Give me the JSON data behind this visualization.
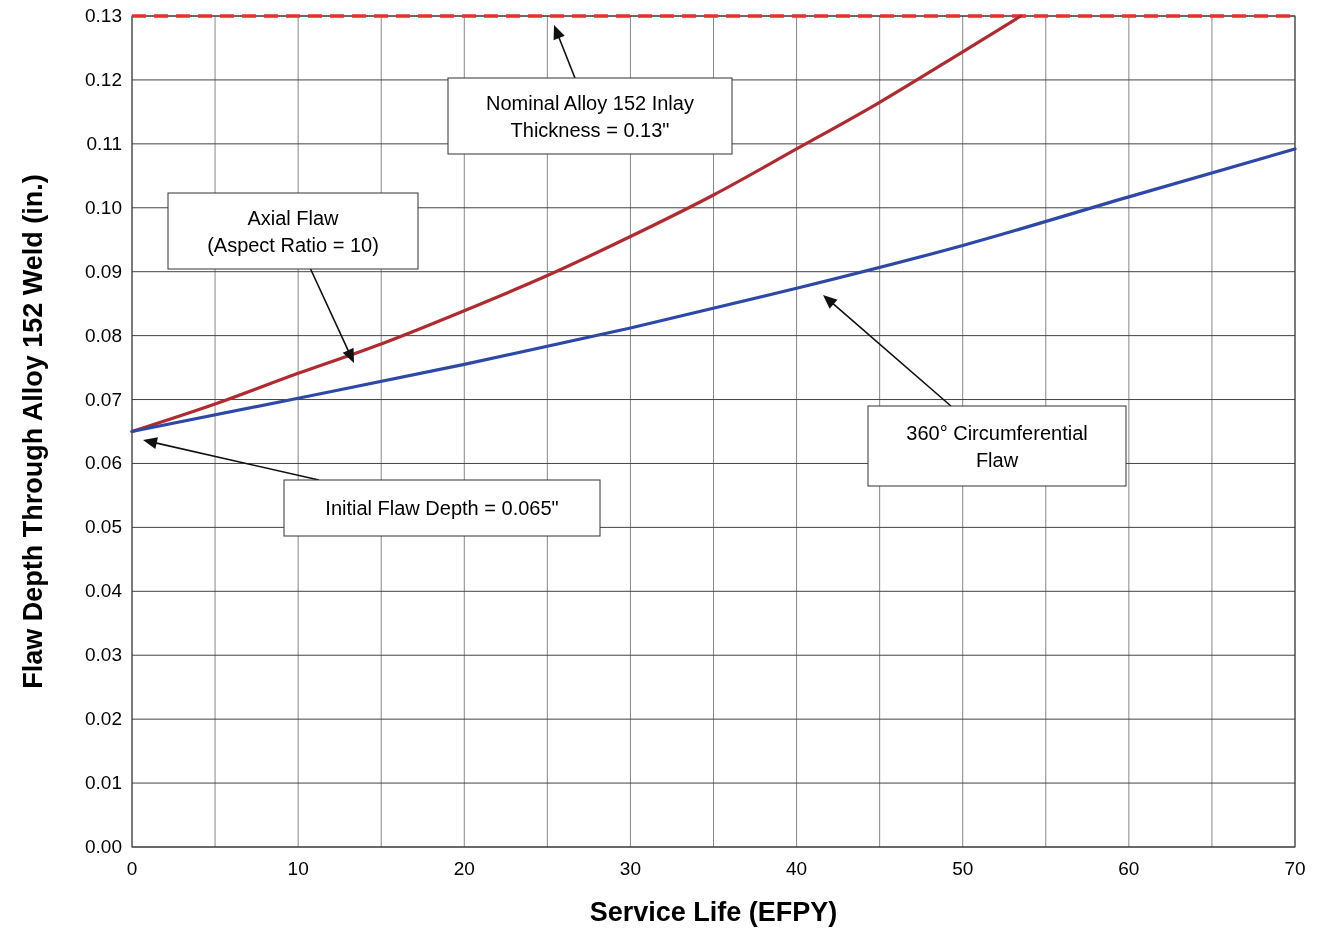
{
  "chart_data": {
    "type": "line",
    "xlabel": "Service Life (EFPY)",
    "ylabel": "Flaw Depth Through Alloy 152 Weld (in.)",
    "x": [
      0,
      5,
      10,
      15,
      20,
      25,
      30,
      35,
      40,
      45,
      50,
      53.5
    ],
    "series": [
      {
        "color": "#b02a30",
        "values": [
          0.065,
          0.0693,
          0.0741,
          0.0787,
          0.0839,
          0.0894,
          0.0955,
          0.102,
          0.1092,
          0.1165,
          0.1244,
          0.13
        ]
      },
      {
        "color": "#2e48a8",
        "x": [
          0,
          10,
          20,
          30,
          40,
          50,
          60,
          70
        ],
        "values": [
          0.065,
          0.0702,
          0.0755,
          0.0812,
          0.0874,
          0.0941,
          0.1017,
          0.1092
        ]
      }
    ],
    "xlim": [
      0,
      70
    ],
    "ylim": [
      0,
      0.13
    ],
    "xticks": [
      0,
      {
        "value": 5,
        "label": null
      },
      10,
      {
        "value": 15,
        "label": null
      },
      20,
      {
        "value": 25,
        "label": null
      },
      30,
      {
        "value": 35,
        "label": null
      },
      40,
      {
        "value": 45,
        "label": null
      },
      50,
      {
        "value": 55,
        "label": null
      },
      60,
      {
        "value": 65,
        "label": null
      },
      70
    ],
    "yticks": [
      {
        "value": 0,
        "label": "0.00"
      },
      {
        "value": 0.01,
        "label": "0.01"
      },
      {
        "value": 0.02,
        "label": "0.02"
      },
      {
        "value": 0.03,
        "label": "0.03"
      },
      {
        "value": 0.04,
        "label": "0.04"
      },
      {
        "value": 0.05,
        "label": "0.05"
      },
      {
        "value": 0.06,
        "label": "0.06"
      },
      {
        "value": 0.07,
        "label": "0.07"
      },
      {
        "value": 0.08,
        "label": "0.08"
      },
      {
        "value": 0.09,
        "label": "0.09"
      },
      {
        "value": 0.1,
        "label": "0.10"
      },
      {
        "value": 0.11,
        "label": "0.11"
      },
      {
        "value": 0.12,
        "label": "0.12"
      },
      {
        "value": 0.13,
        "label": "0.13"
      }
    ],
    "grid": true,
    "line_style": "solid",
    "ref_lines": [
      {
        "axis": "y",
        "value": 0.13,
        "color": "#e8302a",
        "line_style": "dashed"
      }
    ],
    "annotations": [
      "Nominal Alloy 152 Inlay\nThickness = 0.13\"",
      "Axial Flaw\n(Aspect Ratio = 10)",
      "360° Circumferential\nFlaw",
      "Initial Flaw Depth = 0.065\""
    ]
  }
}
